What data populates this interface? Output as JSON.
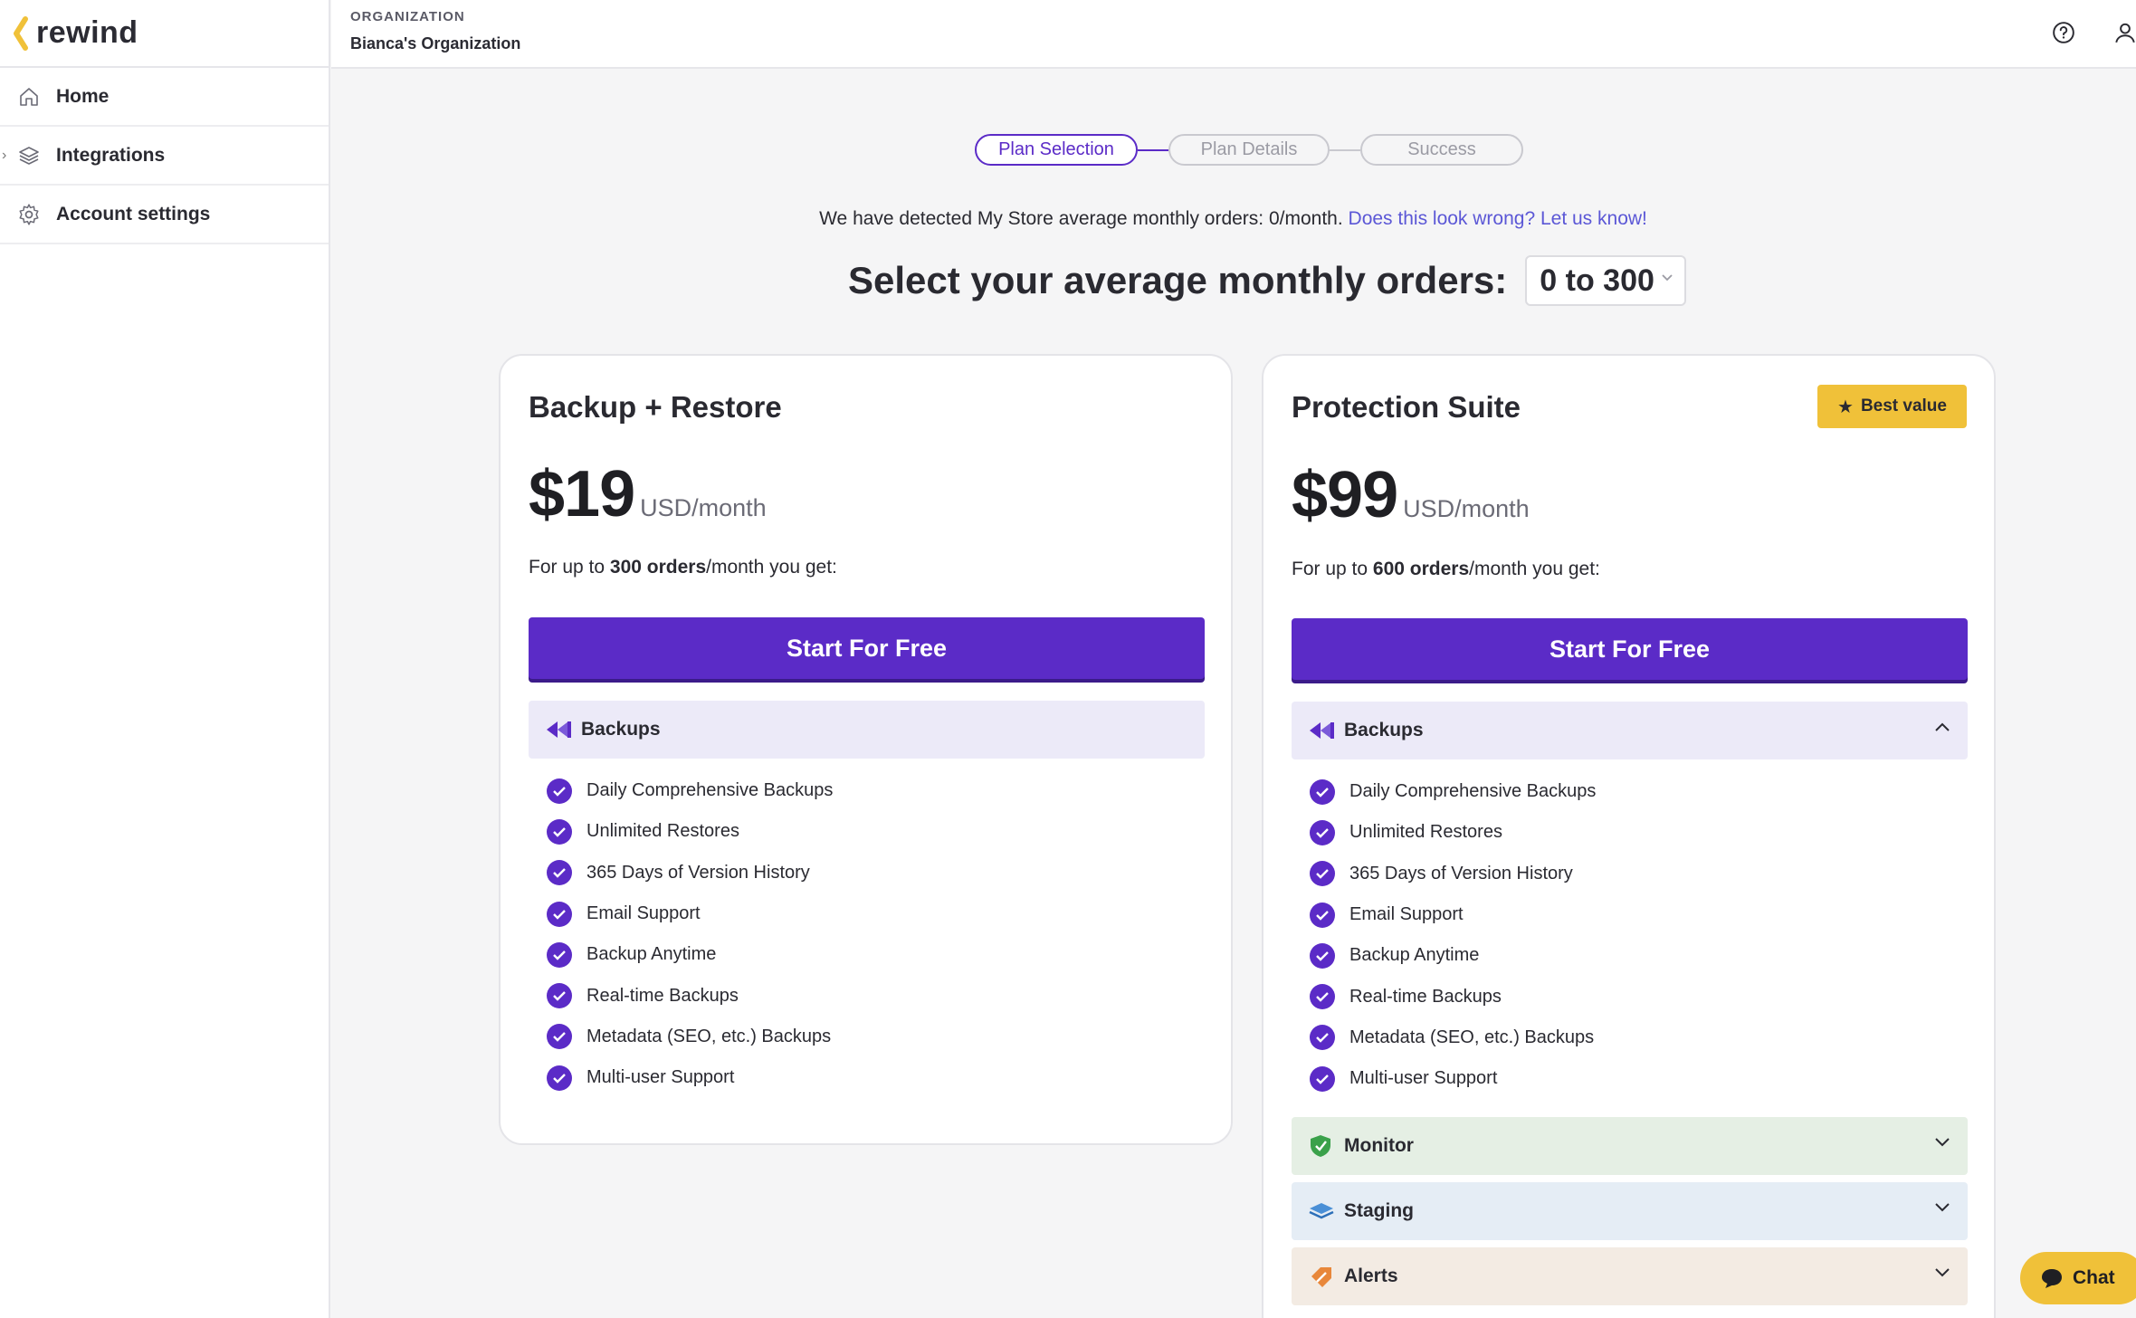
{
  "app": {
    "logo_text": "rewind",
    "brand_color": "#5b2bc7",
    "accent_yellow": "#f0c139"
  },
  "sidebar": {
    "items": [
      {
        "label": "Home",
        "icon": "home-icon"
      },
      {
        "label": "Integrations",
        "icon": "layers-icon"
      },
      {
        "label": "Account settings",
        "icon": "gear-icon"
      }
    ]
  },
  "header": {
    "org_label": "ORGANIZATION",
    "org_name": "Bianca's Organization",
    "icons": [
      "help-icon",
      "user-icon"
    ]
  },
  "stepper": {
    "steps": [
      "Plan Selection",
      "Plan Details",
      "Success"
    ],
    "active": "Plan Selection"
  },
  "detect": {
    "text": "We have detected My Store average monthly orders: 0/month.",
    "link": "Does this look wrong? Let us know!"
  },
  "orders": {
    "title": "Select your average monthly orders:",
    "selected": "0 to 300"
  },
  "plans": [
    {
      "title": "Backup + Restore",
      "price": "$19",
      "unit": "USD/month",
      "for_prefix": "For up to ",
      "for_orders": "300 orders",
      "for_suffix": "/month you get:",
      "cta": "Start For Free",
      "section": "Backups",
      "features": [
        "Daily Comprehensive Backups",
        "Unlimited Restores",
        "365 Days of Version History",
        "Email Support",
        "Backup Anytime",
        "Real-time Backups",
        "Metadata (SEO, etc.) Backups",
        "Multi-user Support"
      ]
    },
    {
      "title": "Protection Suite",
      "badge": "Best value",
      "price": "$99",
      "unit": "USD/month",
      "for_prefix": "For up to ",
      "for_orders": "600 orders",
      "for_suffix": "/month you get:",
      "cta": "Start For Free",
      "section": "Backups",
      "features": [
        "Daily Comprehensive Backups",
        "Unlimited Restores",
        "365 Days of Version History",
        "Email Support",
        "Backup Anytime",
        "Real-time Backups",
        "Metadata (SEO, etc.) Backups",
        "Multi-user Support"
      ],
      "extra_sections": [
        "Monitor",
        "Staging",
        "Alerts"
      ]
    }
  ],
  "chat": {
    "label": "Chat"
  }
}
